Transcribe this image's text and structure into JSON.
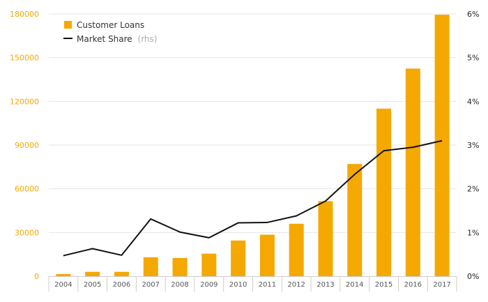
{
  "chart_data": {
    "type": "bar",
    "title": "",
    "xlabel": "",
    "ylabel": "",
    "categories": [
      "2004",
      "2005",
      "2006",
      "2007",
      "2008",
      "2009",
      "2010",
      "2011",
      "2012",
      "2013",
      "2014",
      "2015",
      "2016",
      "2017"
    ],
    "series": [
      {
        "name": "Customer Loans",
        "axis": "left",
        "type": "bar",
        "values": [
          1500,
          3000,
          3000,
          13000,
          12500,
          15500,
          24500,
          28500,
          36000,
          51500,
          77000,
          115000,
          142500,
          179500
        ]
      },
      {
        "name": "Market Share",
        "axis": "right",
        "type": "line",
        "values": [
          0.47,
          0.63,
          0.48,
          1.31,
          1.01,
          0.88,
          1.22,
          1.23,
          1.38,
          1.72,
          2.33,
          2.87,
          2.95,
          3.1
        ]
      }
    ],
    "ylim": [
      0,
      180000
    ],
    "y2lim": [
      0,
      6
    ],
    "y_ticks": [
      "0",
      "30000",
      "60000",
      "90000",
      "120000",
      "150000",
      "180000"
    ],
    "y2_ticks": [
      "0%",
      "1%",
      "2%",
      "3%",
      "4%",
      "5%",
      "6%"
    ],
    "legend": {
      "position": "top-left",
      "bar_label": "Customer Loans",
      "line_label": "Market Share",
      "line_note": "(rhs)"
    },
    "colors": {
      "bar": "#f5a800",
      "line": "#111111",
      "grid": "#e6e6e6",
      "axis": "#cccccc"
    }
  }
}
